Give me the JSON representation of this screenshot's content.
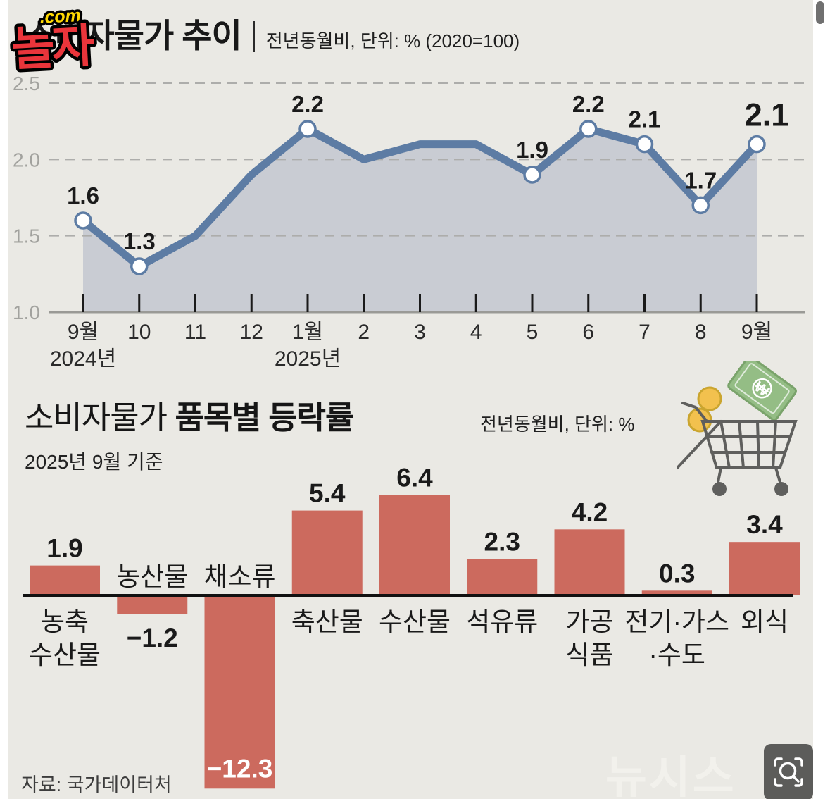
{
  "logo": {
    "dotcom": ".com",
    "main": "놀자"
  },
  "header": {
    "title": "소비자물가 추이",
    "subtitle": "전년동월비, 단위: % (2020=100)"
  },
  "section2": {
    "title_regular": "소비자물가",
    "title_bold": "품목별 등락률",
    "subtitle": "전년동월비, 단위: %",
    "note": "2025년 9월 기준"
  },
  "footer": {
    "source": "자료: 국가데이터처",
    "watermark": "뉴시스"
  },
  "colors": {
    "background": "#eae9e4",
    "line": "#5d7ca4",
    "area_fill": "#c7cad2",
    "grid": "#adadab",
    "axis_gray": "#9a9a96",
    "bar": "#cc6a5e",
    "text_dark": "#1a1a1a",
    "ytick_gray": "#a2a29e",
    "logo_red": "#ea353b",
    "logo_yellow": "#ffd903"
  },
  "chart_data": [
    {
      "type": "line",
      "title": "소비자물가 추이",
      "subtitle": "전년동월비, 단위: % (2020=100)",
      "x_labels": [
        "9월",
        "10",
        "11",
        "12",
        "1월",
        "2",
        "3",
        "4",
        "5",
        "6",
        "7",
        "8",
        "9월"
      ],
      "x_sublabels": [
        {
          "index": 0,
          "label": "2024년"
        },
        {
          "index": 4,
          "label": "2025년"
        }
      ],
      "values": [
        1.6,
        1.3,
        1.5,
        1.9,
        2.2,
        2.0,
        2.1,
        2.1,
        1.9,
        2.2,
        2.1,
        1.7,
        2.1
      ],
      "labeled_point_indices": [
        0,
        1,
        4,
        8,
        9,
        10,
        11,
        12
      ],
      "emphasis_index": 12,
      "ylim": [
        1.0,
        2.5
      ],
      "yticks": [
        2.5,
        2.0,
        1.5,
        1.0
      ],
      "grid": "horizontal dashed",
      "marker": "white circle with blue ring",
      "area": "filled below line"
    },
    {
      "type": "bar",
      "title": "소비자물가 품목별 등락률",
      "subtitle": "전년동월비, 단위: %",
      "note": "2025년 9월 기준",
      "categories": [
        [
          "농축",
          "수산물"
        ],
        [
          "농산물"
        ],
        [
          "채소류"
        ],
        [
          "축산물"
        ],
        [
          "수산물"
        ],
        [
          "석유류"
        ],
        [
          "가공",
          "식품"
        ],
        [
          "전기·가스",
          "·수도"
        ],
        [
          "외식"
        ]
      ],
      "values": [
        1.9,
        -1.2,
        -12.3,
        5.4,
        6.4,
        2.3,
        4.2,
        0.3,
        3.4
      ],
      "value_label_inside_bar_indices": [
        2
      ],
      "baseline": 0
    }
  ]
}
